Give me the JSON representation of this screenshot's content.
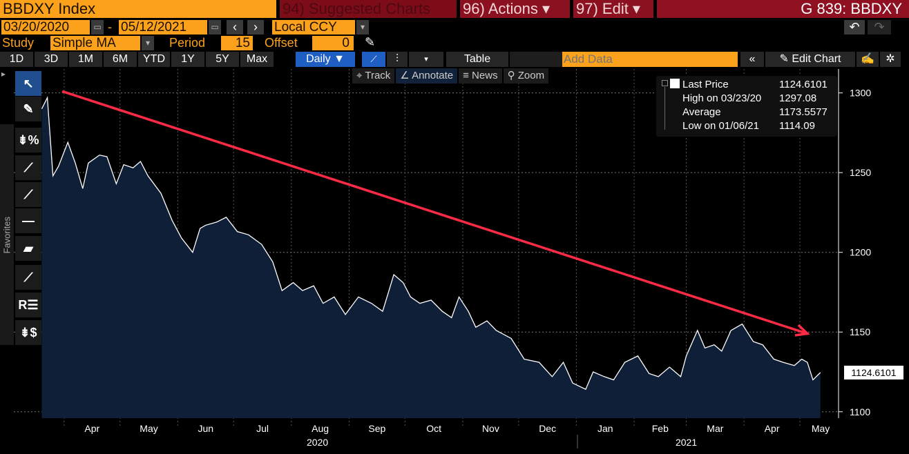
{
  "header": {
    "security": "BBDXY Index",
    "suggested": "94) Suggested Charts",
    "actions": "96) Actions ▾",
    "edit": "97) Edit ▾",
    "title": "G 839: BBDXY"
  },
  "dates": {
    "start": "03/20/2020",
    "dash": "-",
    "end": "05/12/2021",
    "prev": "‹",
    "next": "›",
    "currency": "Local CCY",
    "dropdown": "▾",
    "undo": "↶",
    "redo": "↷"
  },
  "study": {
    "label": "Study",
    "value": "Simple MA",
    "dropdown": "▾",
    "period_label": "Period",
    "period": "15",
    "offset_label": "Offset",
    "offset": "0",
    "pencil": "✎"
  },
  "ranges": [
    "1D",
    "3D",
    "1M",
    "6M",
    "YTD",
    "1Y",
    "5Y",
    "Max"
  ],
  "toolbar": {
    "frequency": "Daily ▼",
    "line_icon": "📈",
    "candle_icon": "⫶",
    "more": "▾",
    "table": "Table",
    "add_data_placeholder": "Add Data",
    "collapse": "«",
    "edit_chart": "✎ Edit Chart",
    "notes_icon": "✍",
    "settings_icon": "✲"
  },
  "subtools": {
    "track": "⌖ Track",
    "annotate": "∠ Annotate",
    "news": "≡ News",
    "zoom": "⚲ Zoom"
  },
  "left_tools": {
    "favorites": "Favorites",
    "expand": "▸",
    "icons": [
      "↖",
      "✎",
      "⇟%",
      "⟋",
      "⟋",
      "—",
      "▰",
      "⟋",
      "R☰",
      "⇟$"
    ]
  },
  "legend": {
    "last_label": "Last Price",
    "last": "1124.6101",
    "high_label": "High on 03/23/20",
    "high": "1297.08",
    "avg_label": "Average",
    "avg": "1173.5577",
    "low_label": "Low on 01/06/21",
    "low": "1114.09"
  },
  "colors": {
    "accent": "#fba11b",
    "area": "#0f1f38",
    "line": "#ffffff",
    "arrow": "#ff2a45"
  },
  "chart_data": {
    "type": "area",
    "series": [
      {
        "values": [
          [
            "2020-03-20",
            1290
          ],
          [
            "2020-03-23",
            1297
          ],
          [
            "2020-03-26",
            1248
          ],
          [
            "2020-03-29",
            1254
          ],
          [
            "2020-04-03",
            1269
          ],
          [
            "2020-04-07",
            1256
          ],
          [
            "2020-04-11",
            1240
          ],
          [
            "2020-04-14",
            1256
          ],
          [
            "2020-04-20",
            1261
          ],
          [
            "2020-04-24",
            1260
          ],
          [
            "2020-04-29",
            1243
          ],
          [
            "2020-05-03",
            1255
          ],
          [
            "2020-05-08",
            1253
          ],
          [
            "2020-05-12",
            1257
          ],
          [
            "2020-05-16",
            1248
          ],
          [
            "2020-05-23",
            1237
          ],
          [
            "2020-05-29",
            1220
          ],
          [
            "2020-06-03",
            1209
          ],
          [
            "2020-06-09",
            1200
          ],
          [
            "2020-06-13",
            1215
          ],
          [
            "2020-06-16",
            1217
          ],
          [
            "2020-06-22",
            1219
          ],
          [
            "2020-06-27",
            1222
          ],
          [
            "2020-07-03",
            1213
          ],
          [
            "2020-07-09",
            1211
          ],
          [
            "2020-07-16",
            1205
          ],
          [
            "2020-07-22",
            1194
          ],
          [
            "2020-07-27",
            1176
          ],
          [
            "2020-08-02",
            1181
          ],
          [
            "2020-08-07",
            1176
          ],
          [
            "2020-08-13",
            1179
          ],
          [
            "2020-08-18",
            1168
          ],
          [
            "2020-08-24",
            1172
          ],
          [
            "2020-08-30",
            1161
          ],
          [
            "2020-09-06",
            1172
          ],
          [
            "2020-09-13",
            1168
          ],
          [
            "2020-09-19",
            1163
          ],
          [
            "2020-09-25",
            1186
          ],
          [
            "2020-09-30",
            1181
          ],
          [
            "2020-10-04",
            1172
          ],
          [
            "2020-10-09",
            1168
          ],
          [
            "2020-10-15",
            1170
          ],
          [
            "2020-10-21",
            1163
          ],
          [
            "2020-10-26",
            1159
          ],
          [
            "2020-10-30",
            1172
          ],
          [
            "2020-11-04",
            1163
          ],
          [
            "2020-11-08",
            1153
          ],
          [
            "2020-11-14",
            1157
          ],
          [
            "2020-11-19",
            1151
          ],
          [
            "2020-11-27",
            1146
          ],
          [
            "2020-12-04",
            1133
          ],
          [
            "2020-12-12",
            1131
          ],
          [
            "2020-12-19",
            1122
          ],
          [
            "2020-12-25",
            1131
          ],
          [
            "2020-12-30",
            1118
          ],
          [
            "2021-01-06",
            1114.09
          ],
          [
            "2021-01-10",
            1125
          ],
          [
            "2021-01-16",
            1122
          ],
          [
            "2021-01-21",
            1120
          ],
          [
            "2021-01-27",
            1131
          ],
          [
            "2021-02-03",
            1135
          ],
          [
            "2021-02-09",
            1124
          ],
          [
            "2021-02-14",
            1122
          ],
          [
            "2021-02-20",
            1128
          ],
          [
            "2021-02-26",
            1122
          ],
          [
            "2021-03-01",
            1135
          ],
          [
            "2021-03-07",
            1151
          ],
          [
            "2021-03-11",
            1140
          ],
          [
            "2021-03-16",
            1142
          ],
          [
            "2021-03-20",
            1138
          ],
          [
            "2021-03-25",
            1151
          ],
          [
            "2021-03-31",
            1155
          ],
          [
            "2021-04-06",
            1144
          ],
          [
            "2021-04-11",
            1142
          ],
          [
            "2021-04-17",
            1133
          ],
          [
            "2021-04-22",
            1131
          ],
          [
            "2021-04-28",
            1129
          ],
          [
            "2021-05-02",
            1133
          ],
          [
            "2021-05-05",
            1131
          ],
          [
            "2021-05-08",
            1120
          ],
          [
            "2021-05-12",
            1124.61
          ]
        ]
      }
    ],
    "xlim": [
      "2020-03-05",
      "2021-05-21"
    ],
    "ylim": [
      1096,
      1315
    ],
    "yticks": [
      1100,
      1150,
      1200,
      1250,
      1300
    ],
    "ytick_labels": [
      "1100",
      "1150",
      "1200",
      "1250",
      "1300"
    ],
    "month_ticks": [
      "2020-04-01",
      "2020-05-01",
      "2020-06-01",
      "2020-07-01",
      "2020-08-01",
      "2020-09-01",
      "2020-10-01",
      "2020-11-01",
      "2020-12-01",
      "2021-01-01",
      "2021-02-01",
      "2021-03-01",
      "2021-04-01",
      "2021-05-01"
    ],
    "month_labels": [
      "Apr",
      "May",
      "Jun",
      "Jul",
      "Aug",
      "Sep",
      "Oct",
      "Nov",
      "Dec",
      "Jan",
      "Feb",
      "Mar",
      "Apr",
      "May"
    ],
    "year_labels": [
      {
        "label": "2020",
        "date": "2020-08-15"
      },
      {
        "label": "2021",
        "date": "2021-03-01"
      }
    ],
    "last_value_label": "1124.6101",
    "grid": true,
    "annotation": {
      "type": "arrow",
      "from": [
        "2020-03-31",
        1301
      ],
      "to": [
        "2021-05-05",
        1149
      ]
    }
  }
}
